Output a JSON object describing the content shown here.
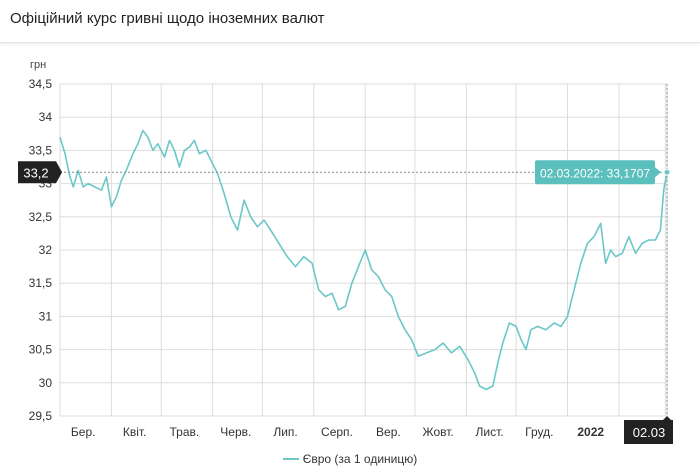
{
  "header": {
    "title": "Офіційний курс гривні щодо іноземних валют"
  },
  "colors": {
    "series": "#6cc7c7",
    "grid": "#dddddd",
    "flag_bg": "#222222",
    "tooltip_bg": "#5bbfbe"
  },
  "chart_data": {
    "type": "line",
    "title": "",
    "xlabel": "",
    "ylabel": "грн",
    "ylim": [
      29.5,
      34.5
    ],
    "y_ticks": [
      "29,5",
      "30",
      "30,5",
      "31",
      "31,5",
      "32",
      "32,5",
      "33",
      "33,5",
      "34",
      "34,5"
    ],
    "x_range": [
      "2021-03-01",
      "2022-03-02"
    ],
    "x_ticks": [
      {
        "date": "2021-03-15",
        "label": "Бер."
      },
      {
        "date": "2021-04-15",
        "label": "Квіт."
      },
      {
        "date": "2021-05-15",
        "label": "Трав."
      },
      {
        "date": "2021-06-15",
        "label": "Черв."
      },
      {
        "date": "2021-07-15",
        "label": "Лип."
      },
      {
        "date": "2021-08-15",
        "label": "Серп."
      },
      {
        "date": "2021-09-15",
        "label": "Вер."
      },
      {
        "date": "2021-10-15",
        "label": "Жовт."
      },
      {
        "date": "2021-11-15",
        "label": "Лист."
      },
      {
        "date": "2021-12-15",
        "label": "Груд."
      },
      {
        "date": "2022-01-15",
        "label": "2022",
        "bold": true
      }
    ],
    "grid": true,
    "series": [
      {
        "name": "Євро (за 1 одиницю)",
        "points": [
          [
            "2021-03-01",
            33.7
          ],
          [
            "2021-03-04",
            33.45
          ],
          [
            "2021-03-07",
            33.1
          ],
          [
            "2021-03-09",
            32.95
          ],
          [
            "2021-03-12",
            33.2
          ],
          [
            "2021-03-15",
            32.95
          ],
          [
            "2021-03-18",
            33.0
          ],
          [
            "2021-03-22",
            32.95
          ],
          [
            "2021-03-26",
            32.9
          ],
          [
            "2021-03-29",
            33.1
          ],
          [
            "2021-04-01",
            32.65
          ],
          [
            "2021-04-04",
            32.8
          ],
          [
            "2021-04-07",
            33.05
          ],
          [
            "2021-04-10",
            33.2
          ],
          [
            "2021-04-14",
            33.45
          ],
          [
            "2021-04-17",
            33.6
          ],
          [
            "2021-04-20",
            33.8
          ],
          [
            "2021-04-23",
            33.7
          ],
          [
            "2021-04-26",
            33.5
          ],
          [
            "2021-04-29",
            33.6
          ],
          [
            "2021-05-03",
            33.4
          ],
          [
            "2021-05-06",
            33.65
          ],
          [
            "2021-05-09",
            33.5
          ],
          [
            "2021-05-12",
            33.25
          ],
          [
            "2021-05-15",
            33.5
          ],
          [
            "2021-05-18",
            33.55
          ],
          [
            "2021-05-21",
            33.65
          ],
          [
            "2021-05-24",
            33.45
          ],
          [
            "2021-05-28",
            33.5
          ],
          [
            "2021-06-01",
            33.3
          ],
          [
            "2021-06-04",
            33.15
          ],
          [
            "2021-06-08",
            32.85
          ],
          [
            "2021-06-12",
            32.5
          ],
          [
            "2021-06-16",
            32.3
          ],
          [
            "2021-06-20",
            32.75
          ],
          [
            "2021-06-24",
            32.5
          ],
          [
            "2021-06-28",
            32.35
          ],
          [
            "2021-07-02",
            32.45
          ],
          [
            "2021-07-06",
            32.3
          ],
          [
            "2021-07-11",
            32.1
          ],
          [
            "2021-07-16",
            31.9
          ],
          [
            "2021-07-21",
            31.75
          ],
          [
            "2021-07-26",
            31.9
          ],
          [
            "2021-07-31",
            31.8
          ],
          [
            "2021-08-04",
            31.4
          ],
          [
            "2021-08-08",
            31.3
          ],
          [
            "2021-08-12",
            31.35
          ],
          [
            "2021-08-16",
            31.1
          ],
          [
            "2021-08-20",
            31.15
          ],
          [
            "2021-08-24",
            31.5
          ],
          [
            "2021-08-28",
            31.75
          ],
          [
            "2021-09-01",
            32.0
          ],
          [
            "2021-09-05",
            31.7
          ],
          [
            "2021-09-09",
            31.6
          ],
          [
            "2021-09-13",
            31.4
          ],
          [
            "2021-09-17",
            31.3
          ],
          [
            "2021-09-21",
            31.0
          ],
          [
            "2021-09-25",
            30.8
          ],
          [
            "2021-09-29",
            30.65
          ],
          [
            "2021-10-03",
            30.4
          ],
          [
            "2021-10-08",
            30.45
          ],
          [
            "2021-10-13",
            30.5
          ],
          [
            "2021-10-18",
            30.6
          ],
          [
            "2021-10-23",
            30.45
          ],
          [
            "2021-10-28",
            30.55
          ],
          [
            "2021-11-02",
            30.35
          ],
          [
            "2021-11-06",
            30.15
          ],
          [
            "2021-11-09",
            29.95
          ],
          [
            "2021-11-13",
            29.9
          ],
          [
            "2021-11-17",
            29.95
          ],
          [
            "2021-11-20",
            30.3
          ],
          [
            "2021-11-23",
            30.6
          ],
          [
            "2021-11-27",
            30.9
          ],
          [
            "2021-12-01",
            30.85
          ],
          [
            "2021-12-04",
            30.65
          ],
          [
            "2021-12-07",
            30.5
          ],
          [
            "2021-12-10",
            30.8
          ],
          [
            "2021-12-14",
            30.85
          ],
          [
            "2021-12-19",
            30.8
          ],
          [
            "2021-12-24",
            30.9
          ],
          [
            "2021-12-28",
            30.85
          ],
          [
            "2022-01-01",
            31.0
          ],
          [
            "2022-01-05",
            31.4
          ],
          [
            "2022-01-09",
            31.8
          ],
          [
            "2022-01-13",
            32.1
          ],
          [
            "2022-01-17",
            32.2
          ],
          [
            "2022-01-21",
            32.4
          ],
          [
            "2022-01-24",
            31.8
          ],
          [
            "2022-01-27",
            32.0
          ],
          [
            "2022-01-30",
            31.9
          ],
          [
            "2022-02-03",
            31.95
          ],
          [
            "2022-02-07",
            32.2
          ],
          [
            "2022-02-11",
            31.95
          ],
          [
            "2022-02-15",
            32.1
          ],
          [
            "2022-02-19",
            32.15
          ],
          [
            "2022-02-23",
            32.15
          ],
          [
            "2022-02-26",
            32.3
          ],
          [
            "2022-02-28",
            32.9
          ],
          [
            "2022-03-02",
            33.1707
          ]
        ]
      }
    ],
    "crosshair": {
      "date": "2022-03-02",
      "value": 33.1707,
      "y_flag_label": "33,2",
      "x_flag_label": "02.03",
      "tooltip": "02.03.2022: 33,1707"
    }
  },
  "legend": {
    "label": "Євро (за 1 одиницю)"
  }
}
